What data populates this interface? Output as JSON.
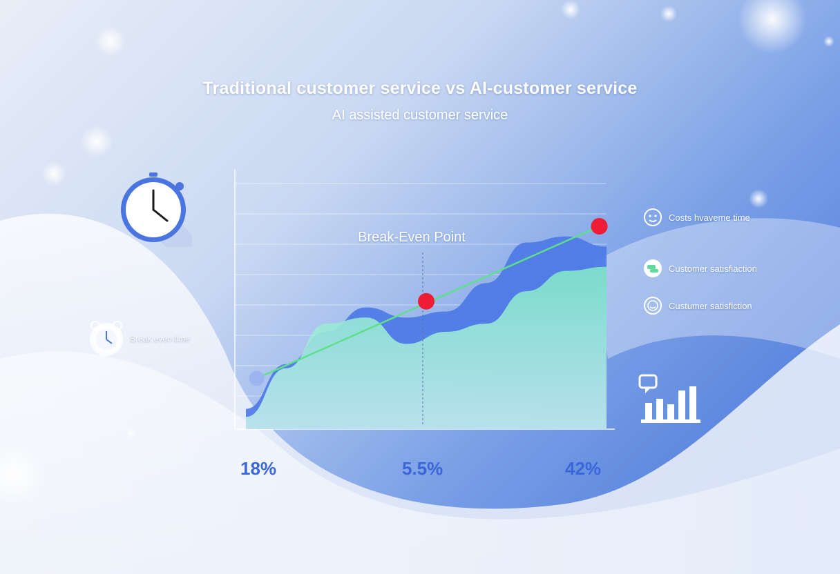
{
  "header": {
    "title": "Traditional customer service vs AI-customer service",
    "subtitle": "AI assisted customer service"
  },
  "chart_data": {
    "type": "area",
    "annotation": "Break-Even Point",
    "x_ticks": [
      "18%",
      "5.5%",
      "42%"
    ],
    "series": [
      {
        "name": "",
        "color": "#4b78e6",
        "values": [
          0.1,
          0.32,
          0.48,
          0.6,
          0.55,
          0.58,
          0.72,
          0.92,
          0.95,
          0.9
        ]
      },
      {
        "name": "",
        "color": "#7fe6c8",
        "values": [
          0.06,
          0.3,
          0.52,
          0.55,
          0.42,
          0.48,
          0.52,
          0.68,
          0.78,
          0.8
        ]
      }
    ],
    "trend_line": {
      "color": "#5ee08a",
      "start": 0.25,
      "end": 1.0
    },
    "markers": [
      {
        "x": 0.03,
        "y": 0.25,
        "color": "#9cb4f0"
      },
      {
        "x": 0.5,
        "y": 0.63,
        "color": "#ee1c34"
      },
      {
        "x": 0.98,
        "y": 1.0,
        "color": "#ee1c34"
      }
    ],
    "grid": true,
    "legend_position": "right"
  },
  "legend": {
    "items": [
      {
        "label": "Costs hvaveme time",
        "icon": "smile-face-icon"
      },
      {
        "label": "Customer satisfiaction",
        "icon": "chat-bubbles-icon"
      },
      {
        "label": "Custumer satisfiction",
        "icon": "face-badge-icon"
      }
    ]
  },
  "side_note": {
    "label": "Break even time",
    "icon": "alarm-clock-icon"
  }
}
